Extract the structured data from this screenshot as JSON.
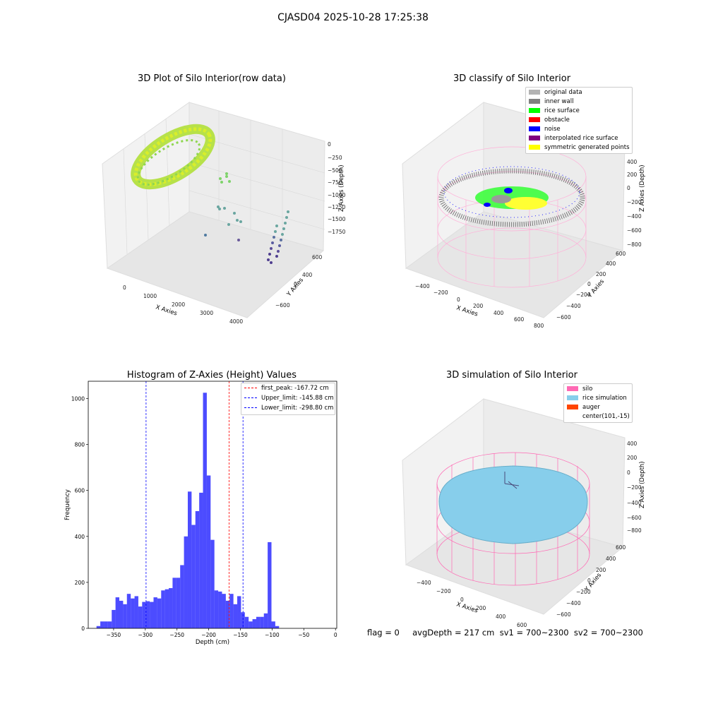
{
  "figure": {
    "suptitle": "CJASD04 2025-10-28 17:25:38",
    "footer": "flag = 0     avgDepth = 217 cm  sv1 = 700~2300  sv2 = 700~2300"
  },
  "panels": {
    "raw": {
      "title": "3D Plot of Silo Interior(row data)",
      "xlabel": "X Axies",
      "ylabel": "Y Axies",
      "zlabel": "Z Axies (Depth)",
      "xticks": [
        "0",
        "1000",
        "2000",
        "3000",
        "4000"
      ],
      "yticks": [
        "600",
        "400",
        "200",
        "0",
        "−200",
        "−400",
        "−600"
      ],
      "zticks": [
        "0",
        "−250",
        "−500",
        "−750",
        "−1000",
        "−1250",
        "−1500",
        "−1750"
      ]
    },
    "classify": {
      "title": "3D classify of Silo Interior",
      "xlabel": "X Axies",
      "ylabel": "Y Axies",
      "zlabel": "Z Axies (Depth)",
      "xticks": [
        "−400",
        "−200",
        "0",
        "200",
        "400",
        "600",
        "800"
      ],
      "yticks": [
        "600",
        "400",
        "200",
        "0",
        "−200",
        "−400",
        "−600"
      ],
      "zticks": [
        "400",
        "200",
        "0",
        "−200",
        "−400",
        "−600",
        "−800"
      ],
      "legend": [
        {
          "label": "original data",
          "color": "#b3b3b3"
        },
        {
          "label": "inner wall",
          "color": "#808080"
        },
        {
          "label": "rice surface",
          "color": "#00ff00"
        },
        {
          "label": "obstacle",
          "color": "#ff0000"
        },
        {
          "label": "noise",
          "color": "#0000ff"
        },
        {
          "label": "interpolated rice surface",
          "color": "#800080"
        },
        {
          "label": "symmetric generated points",
          "color": "#ffff00"
        }
      ]
    },
    "simulation": {
      "title": "3D simulation of Silo Interior",
      "xlabel": "X Axies",
      "ylabel": "Y Axies",
      "zlabel": "Z Axies (Depth)",
      "xticks": [
        "−400",
        "−200",
        "0",
        "200",
        "400",
        "600"
      ],
      "yticks": [
        "600",
        "400",
        "200",
        "0",
        "−200",
        "−400",
        "−600"
      ],
      "zticks": [
        "400",
        "200",
        "0",
        "−200",
        "−400",
        "−600",
        "−800"
      ],
      "legend": [
        {
          "label": "silo",
          "color": "#ff69b4"
        },
        {
          "label": "rice simulation",
          "color": "#87ceeb"
        },
        {
          "label": "auger",
          "color": "#ff4500"
        },
        {
          "label": "center(101,-15)",
          "color": ""
        }
      ]
    }
  },
  "chart_data": {
    "type": "bar",
    "title": "Histogram of Z-Axies (Height) Values",
    "xlabel": "Depth (cm)",
    "ylabel": "Frequency",
    "xlim": [
      -390,
      2
    ],
    "ylim": [
      0,
      1075
    ],
    "xticks": [
      -350,
      -300,
      -250,
      -200,
      -150,
      -100,
      -50,
      0
    ],
    "xtick_labels": [
      "−350",
      "−300",
      "−250",
      "−200",
      "−150",
      "−100",
      "−50",
      "0"
    ],
    "yticks": [
      0,
      200,
      400,
      600,
      800,
      1000
    ],
    "bin_start": -377,
    "bin_width": 6,
    "color": "#0000ff",
    "values": [
      10,
      30,
      30,
      30,
      80,
      135,
      120,
      105,
      150,
      130,
      140,
      95,
      115,
      118,
      115,
      135,
      130,
      165,
      170,
      175,
      220,
      220,
      275,
      400,
      595,
      450,
      510,
      590,
      1025,
      665,
      385,
      165,
      160,
      150,
      120,
      150,
      105,
      140,
      70,
      50,
      30,
      40,
      50,
      50,
      65,
      375,
      30,
      10
    ],
    "vlines": [
      {
        "x": -167.72,
        "label": "first_peak: -167.72 cm",
        "color": "#ff0000"
      },
      {
        "x": -145.88,
        "label": "Upper_limit: -145.88 cm",
        "color": "#0000ff"
      },
      {
        "x": -298.8,
        "label": "Lower_limit: -298.80 cm",
        "color": "#0000ff"
      }
    ],
    "legend_position": "top-right"
  }
}
